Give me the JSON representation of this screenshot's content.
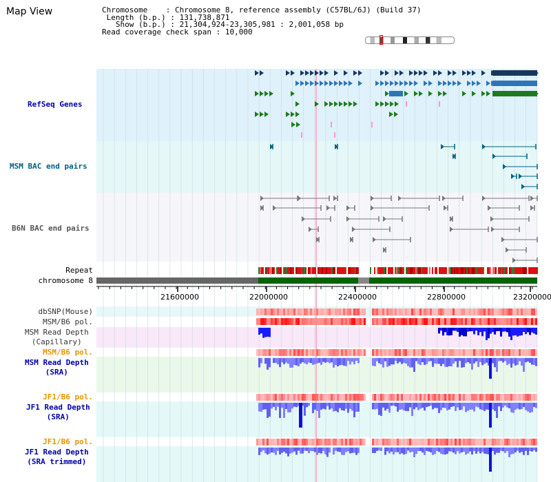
{
  "title": "Map View",
  "info": {
    "chromosome_label": "Chromosome",
    "chromosome_value": "Chromosome 8, reference assembly (C57BL/6J) (Build 37)",
    "length_label": "Length (b.p.)",
    "length_value": "131,738,871",
    "show_label": "Show (b.p.)",
    "show_value": "21,304,924-23,305,981 : 2,001,058 bp",
    "coverage_label": "Read coverage check span",
    "coverage_value": "10,000"
  },
  "tracks": {
    "refseq": "RefSeq Genes",
    "msm_bac": "MSM BAC end pairs",
    "b6n_bac": "B6N BAC end pairs",
    "repeat": "Repeat",
    "chromosome": "chromosome 8",
    "dbsnp": "dbSNP(Mouse)",
    "msm_pol": "MSM/B6 pol.",
    "msm_depth_cap": "MSM Read Depth\n(Capillary)",
    "msm_pol2": "MSM/B6 pol.",
    "msm_depth_sra": "MSM Read Depth\n(SRA)",
    "jf1_pol": "JF1/B6 pol.",
    "jf1_depth_sra": "JF1 Read Depth\n(SRA)",
    "jf1_pol2": "JF1/B6 pol.",
    "jf1_depth_trim": "JF1 Read Depth\n(SRA trimmed)"
  },
  "axis": {
    "ticks": [
      "21600000",
      "22000000",
      "22400000",
      "22800000",
      "23200000"
    ]
  },
  "colors": {
    "gene_dark": "#17375e",
    "gene_blue": "#2e75b6",
    "gene_green": "#1f7a1f",
    "label_blue": "#0000aa",
    "label_teal": "#006080",
    "label_orange": "#e69500",
    "chrom_gray": "#666666",
    "chrom_green": "#006400"
  }
}
